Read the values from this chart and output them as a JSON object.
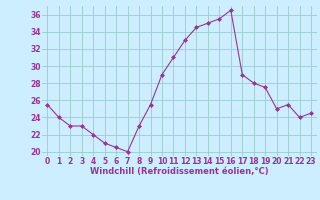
{
  "x": [
    0,
    1,
    2,
    3,
    4,
    5,
    6,
    7,
    8,
    9,
    10,
    11,
    12,
    13,
    14,
    15,
    16,
    17,
    18,
    19,
    20,
    21,
    22,
    23
  ],
  "y": [
    25.5,
    24.0,
    23.0,
    23.0,
    22.0,
    21.0,
    20.5,
    20.0,
    23.0,
    25.5,
    29.0,
    31.0,
    33.0,
    34.5,
    35.0,
    35.5,
    36.5,
    29.0,
    28.0,
    27.5,
    25.0,
    25.5,
    24.0,
    24.5
  ],
  "xlabel": "Windchill (Refroidissement éolien,°C)",
  "ylim": [
    19.5,
    37.0
  ],
  "yticks": [
    20,
    22,
    24,
    26,
    28,
    30,
    32,
    34,
    36
  ],
  "xticks": [
    0,
    1,
    2,
    3,
    4,
    5,
    6,
    7,
    8,
    9,
    10,
    11,
    12,
    13,
    14,
    15,
    16,
    17,
    18,
    19,
    20,
    21,
    22,
    23
  ],
  "line_color": "#993399",
  "marker": "D",
  "marker_size": 2.0,
  "bg_color": "#cceeff",
  "grid_color": "#99cccc",
  "xlabel_color": "#993399",
  "tick_color": "#993399",
  "xlabel_fontsize": 6.0,
  "tick_fontsize": 5.5
}
